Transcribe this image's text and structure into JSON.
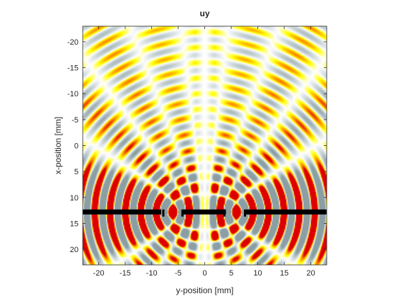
{
  "chart_data": {
    "type": "heatmap",
    "title": "uy",
    "xlabel": "y-position [mm]",
    "ylabel": "x-position [mm]",
    "xlim": [
      -23,
      23
    ],
    "ylim": [
      -23,
      23
    ],
    "y_reversed": true,
    "x_ticks": [
      -20,
      -15,
      -10,
      -5,
      0,
      5,
      10,
      15,
      20
    ],
    "y_ticks": [
      -20,
      -15,
      -10,
      -5,
      0,
      5,
      10,
      15,
      20
    ],
    "colormap": [
      "#8a9ea3",
      "#c3d0d3",
      "#ffffff",
      "#ffff00",
      "#ff8800",
      "#dd0000"
    ],
    "wall": {
      "x_position": 12.8,
      "segments": [
        [
          -23,
          -8.2
        ],
        [
          -4.0,
          4.0
        ],
        [
          7.8,
          23
        ]
      ],
      "end_marks_y": [
        -7.8,
        -4.2,
        3.7,
        7.6
      ],
      "color": "#000000"
    },
    "wave_field": {
      "wavelength": 2.9,
      "sources": [
        {
          "y": -6.0,
          "x": 12.8
        },
        {
          "y": 6.0,
          "x": 12.8
        }
      ]
    }
  }
}
